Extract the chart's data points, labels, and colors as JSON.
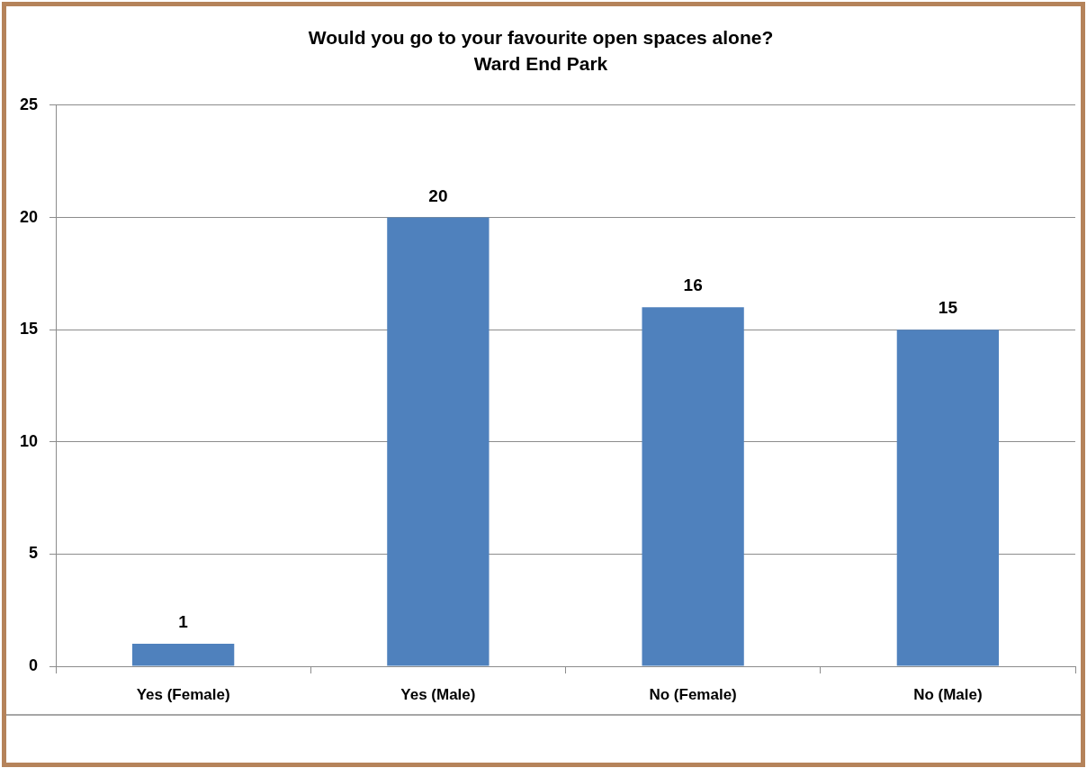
{
  "chart_data": {
    "type": "bar",
    "title": "Would you go to your favourite open spaces alone?",
    "subtitle": "Ward End Park",
    "categories": [
      "Yes (Female)",
      "Yes (Male)",
      "No (Female)",
      "No (Male)"
    ],
    "values": [
      1,
      20,
      16,
      15
    ],
    "color": "#4f81bd",
    "ylim": [
      0,
      25
    ],
    "yticks": [
      0,
      5,
      10,
      15,
      20,
      25
    ],
    "grid": "y",
    "data_labels": true
  }
}
